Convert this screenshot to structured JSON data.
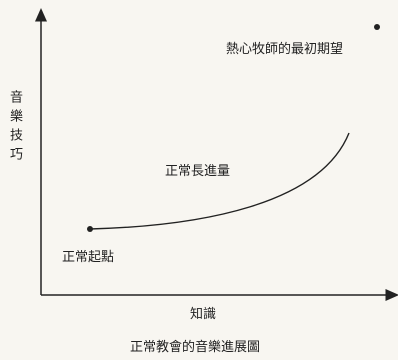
{
  "diagram": {
    "y_axis_label": "音樂技巧",
    "x_axis_label": "知識",
    "start_label": "正常起點",
    "curve_label": "正常長進量",
    "target_label": "熱心牧師的最初期望",
    "caption": "正常教會的音樂進展圖"
  },
  "colors": {
    "background": "#f8f6f1",
    "ink": "#222222"
  }
}
